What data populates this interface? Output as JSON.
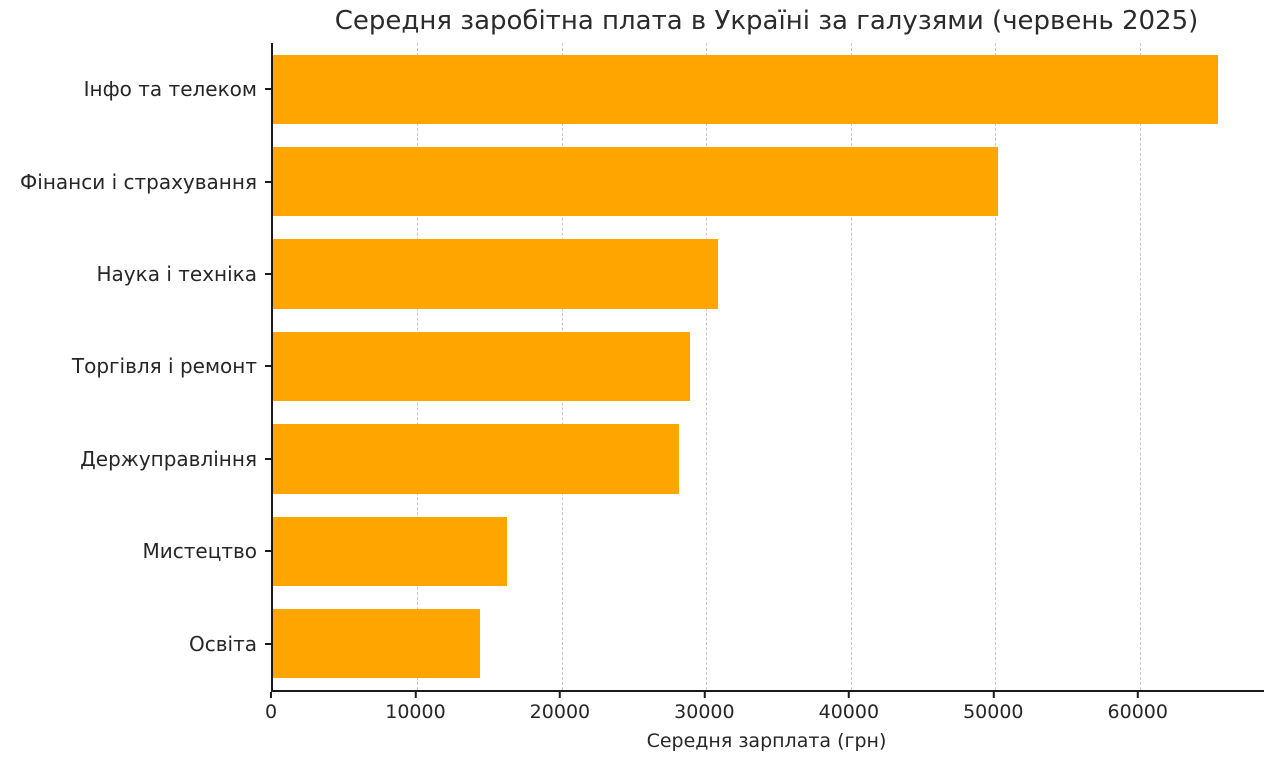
{
  "chart_data": {
    "type": "bar",
    "orientation": "horizontal",
    "title": "Середня заробітна плата в Україні за галузями (червень 2025)",
    "xlabel": "Середня зарплата (грн)",
    "ylabel": "",
    "categories": [
      "Інфо та телеком",
      "Фінанси і страхування",
      "Наука і техніка",
      "Торгівля і ремонт",
      "Держуправління",
      "Мистецтво",
      "Освіта"
    ],
    "values": [
      65400,
      50200,
      30800,
      28900,
      28100,
      16200,
      14300
    ],
    "xlim": [
      0,
      68600
    ],
    "xticks": [
      0,
      10000,
      20000,
      30000,
      40000,
      50000,
      60000
    ],
    "bar_color": "#FFA500",
    "grid": "dashed-vertical",
    "legend": "none",
    "background": "#ffffff"
  }
}
